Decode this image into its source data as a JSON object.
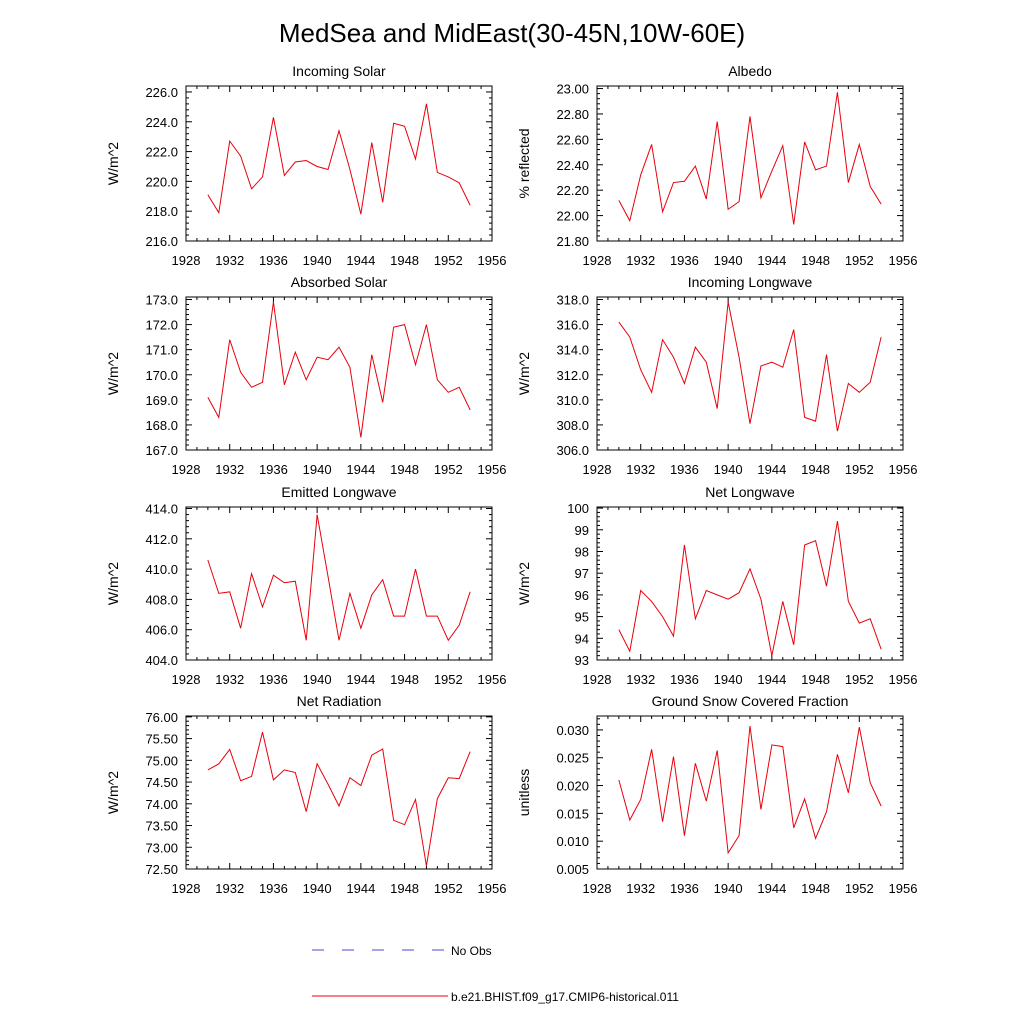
{
  "figure": {
    "title": "MedSea and MidEast(30-45N,10W-60E)",
    "legend": [
      {
        "label": "No Obs",
        "color": "#4a4ad0",
        "dash": "dashed"
      },
      {
        "label": "b.e21.BHIST.f09_g17.CMIP6-historical.011",
        "color": "#e8000b",
        "dash": "solid"
      }
    ],
    "series_color": "#e8000b"
  },
  "chart_data": [
    {
      "type": "line",
      "title": "Incoming Solar",
      "ylabel": "W/m^2",
      "xlim": [
        1928,
        1956
      ],
      "xticks": [
        1928,
        1932,
        1936,
        1940,
        1944,
        1948,
        1952,
        1956
      ],
      "ylim": [
        216,
        226.4
      ],
      "yticks": [
        216,
        218,
        220,
        222,
        224,
        226
      ],
      "ytick_labels": [
        "216.0",
        "218.0",
        "220.0",
        "222.0",
        "224.0",
        "226.0"
      ],
      "x": [
        1930,
        1931,
        1932,
        1933,
        1934,
        1935,
        1936,
        1937,
        1938,
        1939,
        1940,
        1941,
        1942,
        1943,
        1944,
        1945,
        1946,
        1947,
        1948,
        1949,
        1950,
        1951,
        1952,
        1953,
        1954
      ],
      "series": [
        {
          "name": "b.e21.BHIST.f09_g17.CMIP6-historical.011",
          "values": [
            219.1,
            217.9,
            222.7,
            221.7,
            219.5,
            220.3,
            224.3,
            220.4,
            221.3,
            221.4,
            221.0,
            220.8,
            223.4,
            220.8,
            217.8,
            222.6,
            218.6,
            223.9,
            223.7,
            221.5,
            225.2,
            220.6,
            220.3,
            219.9,
            218.4
          ]
        }
      ]
    },
    {
      "type": "line",
      "title": "Albedo",
      "ylabel": "% reflected",
      "xlim": [
        1928,
        1956
      ],
      "xticks": [
        1928,
        1932,
        1936,
        1940,
        1944,
        1948,
        1952,
        1956
      ],
      "ylim": [
        21.8,
        23.02
      ],
      "yticks": [
        21.8,
        22.0,
        22.2,
        22.4,
        22.6,
        22.8,
        23.0
      ],
      "ytick_labels": [
        "21.80",
        "22.00",
        "22.20",
        "22.40",
        "22.60",
        "22.80",
        "23.00"
      ],
      "x": [
        1930,
        1931,
        1932,
        1933,
        1934,
        1935,
        1936,
        1937,
        1938,
        1939,
        1940,
        1941,
        1942,
        1943,
        1944,
        1945,
        1946,
        1947,
        1948,
        1949,
        1950,
        1951,
        1952,
        1953,
        1954
      ],
      "series": [
        {
          "name": "b.e21.BHIST.f09_g17.CMIP6-historical.011",
          "values": [
            22.12,
            21.96,
            22.32,
            22.56,
            22.03,
            22.26,
            22.27,
            22.39,
            22.13,
            22.74,
            22.05,
            22.11,
            22.78,
            22.14,
            22.35,
            22.55,
            21.93,
            22.58,
            22.36,
            22.39,
            22.97,
            22.26,
            22.56,
            22.23,
            22.09
          ]
        }
      ]
    },
    {
      "type": "line",
      "title": "Absorbed Solar",
      "ylabel": "W/m^2",
      "xlim": [
        1928,
        1956
      ],
      "xticks": [
        1928,
        1932,
        1936,
        1940,
        1944,
        1948,
        1952,
        1956
      ],
      "ylim": [
        167,
        173.1
      ],
      "yticks": [
        167,
        168,
        169,
        170,
        171,
        172,
        173
      ],
      "ytick_labels": [
        "167.0",
        "168.0",
        "169.0",
        "170.0",
        "171.0",
        "172.0",
        "173.0"
      ],
      "x": [
        1930,
        1931,
        1932,
        1933,
        1934,
        1935,
        1936,
        1937,
        1938,
        1939,
        1940,
        1941,
        1942,
        1943,
        1944,
        1945,
        1946,
        1947,
        1948,
        1949,
        1950,
        1951,
        1952,
        1953,
        1954
      ],
      "series": [
        {
          "name": "b.e21.BHIST.f09_g17.CMIP6-historical.011",
          "values": [
            169.1,
            168.3,
            171.4,
            170.1,
            169.5,
            169.7,
            172.9,
            169.6,
            170.9,
            169.8,
            170.7,
            170.6,
            171.1,
            170.3,
            167.5,
            170.8,
            168.9,
            171.9,
            172.0,
            170.4,
            172.0,
            169.8,
            169.3,
            169.5,
            168.6
          ]
        }
      ]
    },
    {
      "type": "line",
      "title": "Incoming Longwave",
      "ylabel": "W/m^2",
      "xlim": [
        1928,
        1956
      ],
      "xticks": [
        1928,
        1932,
        1936,
        1940,
        1944,
        1948,
        1952,
        1956
      ],
      "ylim": [
        306,
        318.2
      ],
      "yticks": [
        306,
        308,
        310,
        312,
        314,
        316,
        318
      ],
      "ytick_labels": [
        "306.0",
        "308.0",
        "310.0",
        "312.0",
        "314.0",
        "316.0",
        "318.0"
      ],
      "x": [
        1930,
        1931,
        1932,
        1933,
        1934,
        1935,
        1936,
        1937,
        1938,
        1939,
        1940,
        1941,
        1942,
        1943,
        1944,
        1945,
        1946,
        1947,
        1948,
        1949,
        1950,
        1951,
        1952,
        1953,
        1954
      ],
      "series": [
        {
          "name": "b.e21.BHIST.f09_g17.CMIP6-historical.011",
          "values": [
            316.2,
            315.0,
            312.4,
            310.6,
            314.8,
            313.4,
            311.3,
            314.2,
            313.0,
            309.3,
            317.8,
            313.4,
            308.1,
            312.7,
            313.0,
            312.6,
            315.6,
            308.6,
            308.3,
            313.6,
            307.5,
            311.3,
            310.6,
            311.4,
            315.0
          ]
        }
      ]
    },
    {
      "type": "line",
      "title": "Emitted Longwave",
      "ylabel": "W/m^2",
      "xlim": [
        1928,
        1956
      ],
      "xticks": [
        1928,
        1932,
        1936,
        1940,
        1944,
        1948,
        1952,
        1956
      ],
      "ylim": [
        404,
        414.1
      ],
      "yticks": [
        404,
        406,
        408,
        410,
        412,
        414
      ],
      "ytick_labels": [
        "404.0",
        "406.0",
        "408.0",
        "410.0",
        "412.0",
        "414.0"
      ],
      "x": [
        1930,
        1931,
        1932,
        1933,
        1934,
        1935,
        1936,
        1937,
        1938,
        1939,
        1940,
        1941,
        1942,
        1943,
        1944,
        1945,
        1946,
        1947,
        1948,
        1949,
        1950,
        1951,
        1952,
        1953,
        1954
      ],
      "series": [
        {
          "name": "b.e21.BHIST.f09_g17.CMIP6-historical.011",
          "values": [
            410.6,
            408.4,
            408.5,
            406.1,
            409.7,
            407.5,
            409.6,
            409.1,
            409.2,
            405.3,
            413.6,
            409.5,
            405.3,
            408.4,
            406.1,
            408.3,
            409.3,
            406.9,
            406.9,
            410.0,
            406.9,
            406.9,
            405.3,
            406.3,
            408.5
          ]
        }
      ]
    },
    {
      "type": "line",
      "title": "Net Longwave",
      "ylabel": "W/m^2",
      "xlim": [
        1928,
        1956
      ],
      "xticks": [
        1928,
        1932,
        1936,
        1940,
        1944,
        1948,
        1952,
        1956
      ],
      "ylim": [
        93,
        100.05
      ],
      "yticks": [
        93,
        94,
        95,
        96,
        97,
        98,
        99,
        100
      ],
      "ytick_labels": [
        "93",
        "94",
        "95",
        "96",
        "97",
        "98",
        "99",
        "100"
      ],
      "x": [
        1930,
        1931,
        1932,
        1933,
        1934,
        1935,
        1936,
        1937,
        1938,
        1939,
        1940,
        1941,
        1942,
        1943,
        1944,
        1945,
        1946,
        1947,
        1948,
        1949,
        1950,
        1951,
        1952,
        1953,
        1954
      ],
      "series": [
        {
          "name": "b.e21.BHIST.f09_g17.CMIP6-historical.011",
          "values": [
            94.4,
            93.4,
            96.2,
            95.7,
            95.0,
            94.1,
            98.3,
            94.9,
            96.2,
            96.0,
            95.8,
            96.1,
            97.2,
            95.8,
            93.2,
            95.7,
            93.7,
            98.3,
            98.5,
            96.4,
            99.4,
            95.7,
            94.7,
            94.9,
            93.5
          ]
        }
      ]
    },
    {
      "type": "line",
      "title": "Net Radiation",
      "ylabel": "W/m^2",
      "xlim": [
        1928,
        1956
      ],
      "xticks": [
        1928,
        1932,
        1936,
        1940,
        1944,
        1948,
        1952,
        1956
      ],
      "ylim": [
        72.5,
        76.02
      ],
      "yticks": [
        72.5,
        73.0,
        73.5,
        74.0,
        74.5,
        75.0,
        75.5,
        76.0
      ],
      "ytick_labels": [
        "72.50",
        "73.00",
        "73.50",
        "74.00",
        "74.50",
        "75.00",
        "75.50",
        "76.00"
      ],
      "x": [
        1930,
        1931,
        1932,
        1933,
        1934,
        1935,
        1936,
        1937,
        1938,
        1939,
        1940,
        1941,
        1942,
        1943,
        1944,
        1945,
        1946,
        1947,
        1948,
        1949,
        1950,
        1951,
        1952,
        1953,
        1954
      ],
      "series": [
        {
          "name": "b.e21.BHIST.f09_g17.CMIP6-historical.011",
          "values": [
            74.78,
            74.92,
            75.25,
            74.53,
            74.63,
            75.65,
            74.55,
            74.78,
            74.72,
            73.82,
            74.92,
            74.45,
            73.95,
            74.6,
            74.42,
            75.12,
            75.26,
            73.62,
            73.52,
            74.1,
            72.57,
            74.12,
            74.6,
            74.58,
            75.2
          ]
        }
      ]
    },
    {
      "type": "line",
      "title": "Ground Snow Covered Fraction",
      "ylabel": "unitless",
      "xlim": [
        1928,
        1956
      ],
      "xticks": [
        1928,
        1932,
        1936,
        1940,
        1944,
        1948,
        1952,
        1956
      ],
      "ylim": [
        0.005,
        0.0325
      ],
      "yticks": [
        0.005,
        0.01,
        0.015,
        0.02,
        0.025,
        0.03
      ],
      "ytick_labels": [
        "0.005",
        "0.010",
        "0.015",
        "0.020",
        "0.025",
        "0.030"
      ],
      "x": [
        1930,
        1931,
        1932,
        1933,
        1934,
        1935,
        1936,
        1937,
        1938,
        1939,
        1940,
        1941,
        1942,
        1943,
        1944,
        1945,
        1946,
        1947,
        1948,
        1949,
        1950,
        1951,
        1952,
        1953,
        1954
      ],
      "series": [
        {
          "name": "b.e21.BHIST.f09_g17.CMIP6-historical.011",
          "values": [
            0.021,
            0.0138,
            0.0175,
            0.0265,
            0.0135,
            0.0252,
            0.011,
            0.024,
            0.0172,
            0.0263,
            0.0079,
            0.011,
            0.0307,
            0.0157,
            0.0273,
            0.027,
            0.0124,
            0.0176,
            0.0105,
            0.0153,
            0.0256,
            0.0187,
            0.0305,
            0.0205,
            0.0163
          ]
        }
      ]
    }
  ]
}
